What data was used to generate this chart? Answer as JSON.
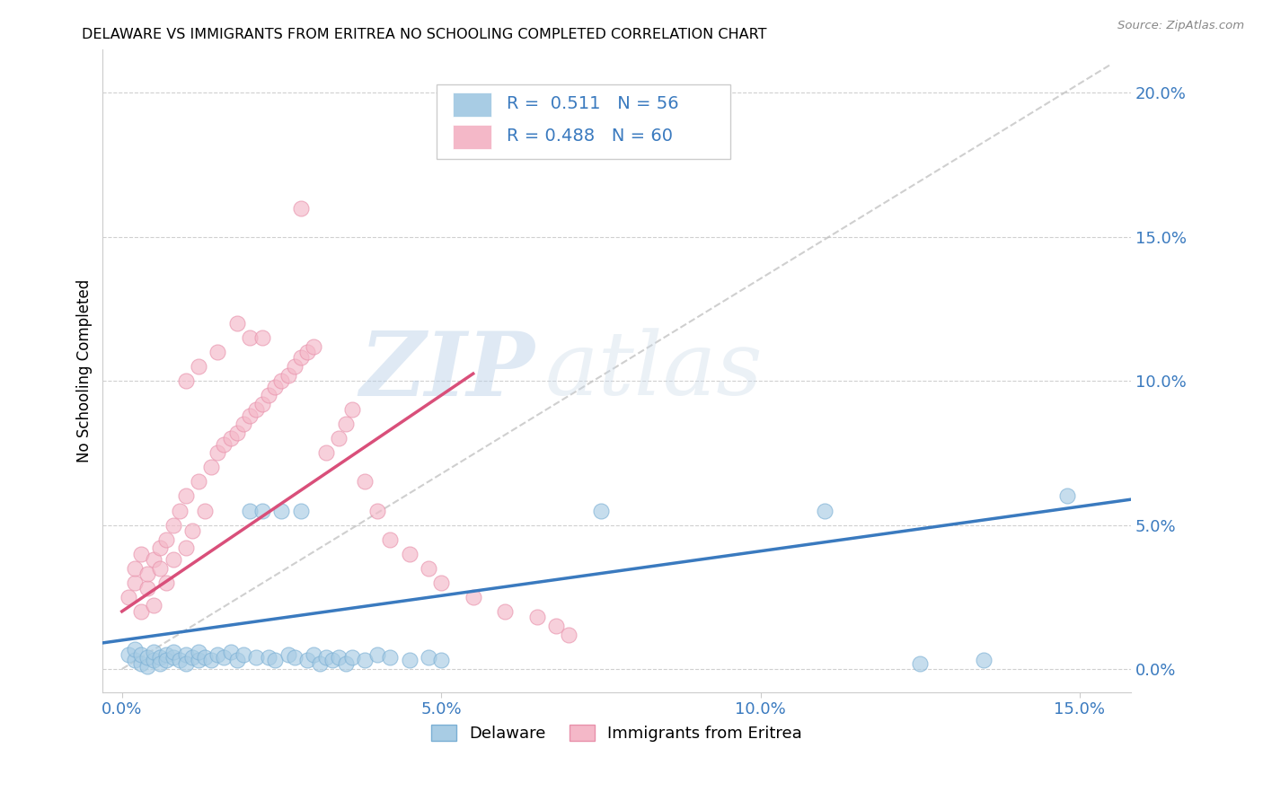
{
  "title": "DELAWARE VS IMMIGRANTS FROM ERITREA NO SCHOOLING COMPLETED CORRELATION CHART",
  "source": "Source: ZipAtlas.com",
  "ylabel": "No Schooling Completed",
  "x_ticks": [
    0.0,
    0.05,
    0.1,
    0.15
  ],
  "x_tick_labels": [
    "0.0%",
    "5.0%",
    "10.0%",
    "15.0%"
  ],
  "y_ticks_right": [
    0.0,
    0.05,
    0.1,
    0.15,
    0.2
  ],
  "y_tick_labels_right": [
    "0.0%",
    "5.0%",
    "10.0%",
    "15.0%",
    "20.0%"
  ],
  "xlim": [
    -0.003,
    0.158
  ],
  "ylim": [
    -0.008,
    0.215
  ],
  "watermark_zip": "ZIP",
  "watermark_atlas": "atlas",
  "blue_color": "#a8cce4",
  "pink_color": "#f4b8c8",
  "blue_line_color": "#3a7abf",
  "pink_line_color": "#d94f7a",
  "grid_color": "#d0d0d0",
  "delaware_x": [
    0.001,
    0.002,
    0.002,
    0.003,
    0.003,
    0.004,
    0.004,
    0.005,
    0.005,
    0.006,
    0.006,
    0.007,
    0.007,
    0.008,
    0.008,
    0.009,
    0.01,
    0.01,
    0.011,
    0.012,
    0.012,
    0.013,
    0.014,
    0.015,
    0.016,
    0.017,
    0.018,
    0.019,
    0.02,
    0.021,
    0.022,
    0.023,
    0.024,
    0.025,
    0.026,
    0.027,
    0.028,
    0.029,
    0.03,
    0.031,
    0.032,
    0.033,
    0.034,
    0.035,
    0.036,
    0.038,
    0.04,
    0.042,
    0.045,
    0.048,
    0.05,
    0.075,
    0.11,
    0.125,
    0.135,
    0.148
  ],
  "delaware_y": [
    0.005,
    0.003,
    0.007,
    0.002,
    0.005,
    0.001,
    0.004,
    0.003,
    0.006,
    0.004,
    0.002,
    0.005,
    0.003,
    0.004,
    0.006,
    0.003,
    0.005,
    0.002,
    0.004,
    0.003,
    0.006,
    0.004,
    0.003,
    0.005,
    0.004,
    0.006,
    0.003,
    0.005,
    0.055,
    0.004,
    0.055,
    0.004,
    0.003,
    0.055,
    0.005,
    0.004,
    0.055,
    0.003,
    0.005,
    0.002,
    0.004,
    0.003,
    0.004,
    0.002,
    0.004,
    0.003,
    0.005,
    0.004,
    0.003,
    0.004,
    0.003,
    0.055,
    0.055,
    0.002,
    0.003,
    0.06
  ],
  "eritrea_x": [
    0.001,
    0.002,
    0.002,
    0.003,
    0.003,
    0.004,
    0.004,
    0.005,
    0.005,
    0.006,
    0.006,
    0.007,
    0.007,
    0.008,
    0.008,
    0.009,
    0.01,
    0.01,
    0.011,
    0.012,
    0.013,
    0.014,
    0.015,
    0.016,
    0.017,
    0.018,
    0.019,
    0.02,
    0.021,
    0.022,
    0.023,
    0.024,
    0.025,
    0.026,
    0.027,
    0.028,
    0.029,
    0.03,
    0.032,
    0.034,
    0.035,
    0.036,
    0.038,
    0.04,
    0.042,
    0.045,
    0.048,
    0.05,
    0.055,
    0.06,
    0.065,
    0.068,
    0.07,
    0.028,
    0.02,
    0.018,
    0.022,
    0.015,
    0.012,
    0.01
  ],
  "eritrea_y": [
    0.025,
    0.03,
    0.035,
    0.02,
    0.04,
    0.028,
    0.033,
    0.038,
    0.022,
    0.042,
    0.035,
    0.045,
    0.03,
    0.05,
    0.038,
    0.055,
    0.042,
    0.06,
    0.048,
    0.065,
    0.055,
    0.07,
    0.075,
    0.078,
    0.08,
    0.082,
    0.085,
    0.088,
    0.09,
    0.092,
    0.095,
    0.098,
    0.1,
    0.102,
    0.105,
    0.108,
    0.11,
    0.112,
    0.075,
    0.08,
    0.085,
    0.09,
    0.065,
    0.055,
    0.045,
    0.04,
    0.035,
    0.03,
    0.025,
    0.02,
    0.018,
    0.015,
    0.012,
    0.16,
    0.115,
    0.12,
    0.115,
    0.11,
    0.105,
    0.1
  ]
}
